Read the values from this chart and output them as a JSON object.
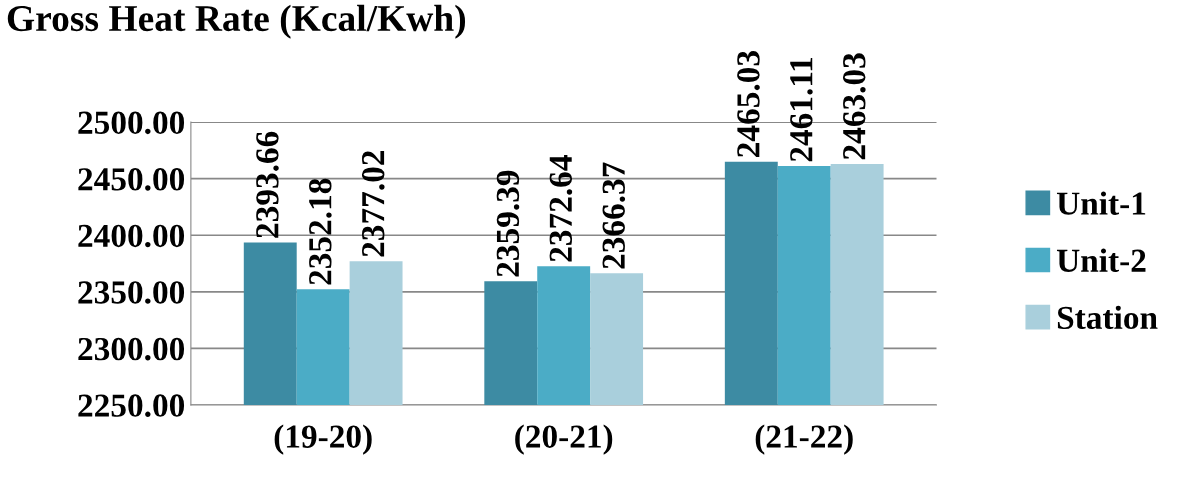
{
  "chart_data": {
    "type": "bar",
    "title": "Gross Heat Rate (Kcal/Kwh)",
    "categories": [
      "(19-20)",
      "(20-21)",
      "(21-22)"
    ],
    "series": [
      {
        "name": "Unit-1",
        "color": "#3d8ba3",
        "values": [
          2393.66,
          2359.39,
          2465.03
        ]
      },
      {
        "name": "Unit-2",
        "color": "#4bacc6",
        "values": [
          2352.18,
          2372.64,
          2461.11
        ]
      },
      {
        "name": "Station",
        "color": "#a9cfdc",
        "values": [
          2377.02,
          2366.37,
          2463.03
        ]
      }
    ],
    "ylim": [
      2250,
      2500
    ],
    "yticks": [
      {
        "value": 2250,
        "label": "2250.00"
      },
      {
        "value": 2300,
        "label": "2300.00"
      },
      {
        "value": 2350,
        "label": "2350.00"
      },
      {
        "value": 2400,
        "label": "2400.00"
      },
      {
        "value": 2450,
        "label": "2450.00"
      },
      {
        "value": 2500,
        "label": "2500.00"
      }
    ],
    "grid": "y",
    "legend": "right",
    "data_labels": true
  }
}
